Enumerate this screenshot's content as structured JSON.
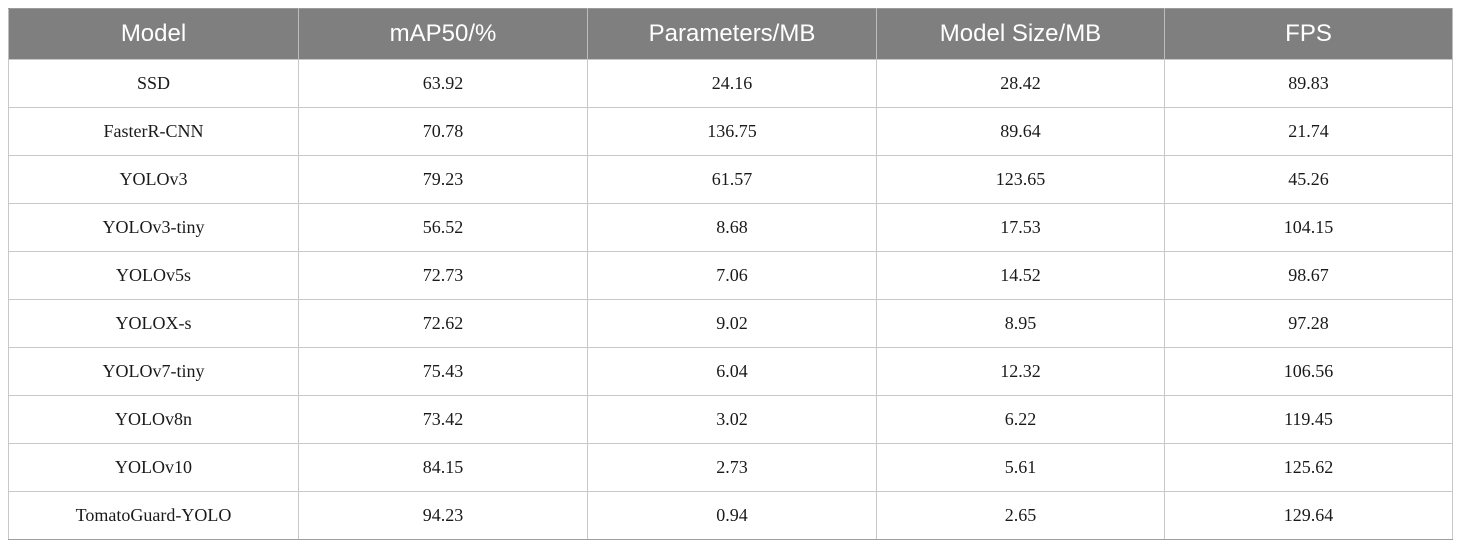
{
  "table": {
    "headers": [
      "Model",
      "mAP50/%",
      "Parameters/MB",
      "Model Size/MB",
      "FPS"
    ],
    "rows": [
      [
        "SSD",
        "63.92",
        "24.16",
        "28.42",
        "89.83"
      ],
      [
        "FasterR-CNN",
        "70.78",
        "136.75",
        "89.64",
        "21.74"
      ],
      [
        "YOLOv3",
        "79.23",
        "61.57",
        "123.65",
        "45.26"
      ],
      [
        "YOLOv3-tiny",
        "56.52",
        "8.68",
        "17.53",
        "104.15"
      ],
      [
        "YOLOv5s",
        "72.73",
        "7.06",
        "14.52",
        "98.67"
      ],
      [
        "YOLOX-s",
        "72.62",
        "9.02",
        "8.95",
        "97.28"
      ],
      [
        "YOLOv7-tiny",
        "75.43",
        "6.04",
        "12.32",
        "106.56"
      ],
      [
        "YOLOv8n",
        "73.42",
        "3.02",
        "6.22",
        "119.45"
      ],
      [
        "YOLOv10",
        "84.15",
        "2.73",
        "5.61",
        "125.62"
      ],
      [
        "TomatoGuard-YOLO",
        "94.23",
        "0.94",
        "2.65",
        "129.64"
      ]
    ]
  },
  "colors": {
    "header_background": "#7f7f7f",
    "header_text": "#ffffff",
    "border": "#c8c8c8"
  }
}
